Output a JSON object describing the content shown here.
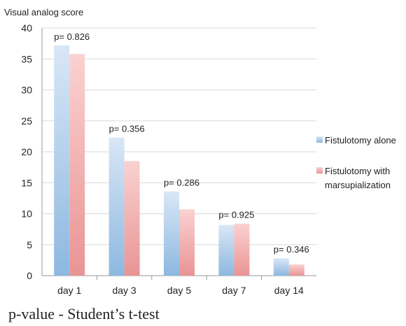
{
  "chart_data": {
    "type": "bar",
    "ylabel": "Visual analog score",
    "xlabel": "",
    "ylim": [
      0,
      40
    ],
    "yticks": [
      0,
      5,
      10,
      15,
      20,
      25,
      30,
      35,
      40
    ],
    "grid": true,
    "legend_position": "right",
    "categories": [
      "day 1",
      "day 3",
      "day 5",
      "day 7",
      "day 14"
    ],
    "series": [
      {
        "name": "Fistulotomy alone",
        "values": [
          37.2,
          22.3,
          13.6,
          8.2,
          2.8
        ],
        "color": "#9cc3e6"
      },
      {
        "name": "Fistulotomy with marsupialization",
        "values": [
          35.8,
          18.5,
          10.7,
          8.4,
          1.8
        ],
        "color": "#f2a9a9"
      }
    ],
    "legend_lines": [
      [
        "Fistulotomy alone"
      ],
      [
        "Fistulotomy with",
        "marsupialization"
      ]
    ],
    "annotations": [
      "p= 0.826",
      "p= 0.356",
      "p= 0.286",
      "p= 0.925",
      "p= 0.346"
    ]
  },
  "footnote": "p-value - Student’s t-test"
}
